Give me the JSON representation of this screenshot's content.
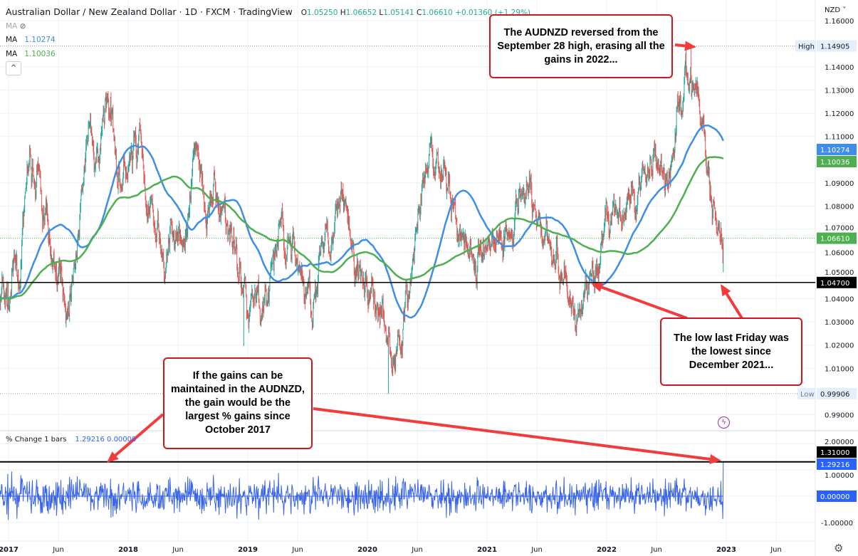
{
  "header": {
    "title": "Australian Dollar / New Zealand Dollar · 1D · FXCM · TradingView",
    "open_label": "O",
    "open": "1.05250",
    "high_label": "H",
    "high": "1.06652",
    "low_label": "L",
    "low": "1.05141",
    "close_label": "C",
    "close": "1.06610",
    "change": "+0.01360 (+1.29%)",
    "currency": "NZD"
  },
  "indicators": [
    {
      "label": "MA",
      "value": "",
      "hidden": true,
      "icon": "eye-off-icon"
    },
    {
      "label": "MA",
      "value": "1.10274",
      "color": "#3d8ee8"
    },
    {
      "label": "MA",
      "value": "1.10036",
      "color": "#4caf50"
    }
  ],
  "collapse_icon": "chevron-up-icon",
  "lower_pane": {
    "label": "% Change 1 bars",
    "value1": "1.29216",
    "value2": "0.00000"
  },
  "annotations": [
    {
      "text": "The AUDNZD reversed from the September 28 high, erasing all the gains in 2022..."
    },
    {
      "text": "If the gains can be maintained in the AUDNZD, the gain would be the largest % gains since October 2017"
    },
    {
      "text": "The low last Friday was the lowest since December 2021..."
    }
  ],
  "colors": {
    "up": "#26a69a",
    "down": "#ef5350",
    "ma_fast": "#3d8ee8",
    "ma_slow": "#4caf50",
    "pct": "#3a65e8",
    "annotation": "#d0151f",
    "arrow": "#f23c3c"
  },
  "chart_data": [
    {
      "type": "candlestick",
      "title": "Australian Dollar / New Zealand Dollar · 1D · FXCM · TradingView",
      "ylabel": "NZD",
      "ylim": [
        0.985,
        1.162
      ],
      "y_ticks": [
        "1.16000",
        "1.14000",
        "1.13000",
        "1.12000",
        "1.11000",
        "1.09000",
        "1.08000",
        "1.07000",
        "1.06000",
        "1.05000",
        "1.04000",
        "1.03000",
        "1.02000",
        "1.01000",
        "0.99000"
      ],
      "x_ticks": [
        "2017",
        "Jun",
        "2018",
        "Jun",
        "2019",
        "Jun",
        "2020",
        "Jun",
        "2021",
        "Jun",
        "2022",
        "Jun",
        "2023",
        "Jun"
      ],
      "grid": true,
      "monthly_closes": {
        "start": "2017-01",
        "values": [
          1.04,
          1.05,
          1.09,
          1.085,
          1.06,
          1.05,
          1.045,
          1.07,
          1.11,
          1.09,
          1.12,
          1.1,
          1.1,
          1.09,
          1.075,
          1.06,
          1.06,
          1.08,
          1.075,
          1.1,
          1.095,
          1.08,
          1.075,
          1.06,
          1.045,
          1.045,
          1.035,
          1.055,
          1.065,
          1.055,
          1.045,
          1.04,
          1.075,
          1.08,
          1.07,
          1.045,
          1.04,
          1.035,
          1.03,
          1.01,
          1.05,
          1.07,
          1.08,
          1.09,
          1.095,
          1.075,
          1.065,
          1.06,
          1.07,
          1.075,
          1.08,
          1.09,
          1.08,
          1.075,
          1.07,
          1.055,
          1.045,
          1.035,
          1.045,
          1.045,
          1.06,
          1.07,
          1.08,
          1.085,
          1.105,
          1.11,
          1.105,
          1.12,
          1.14,
          1.13,
          1.1,
          1.066
        ]
      },
      "last_bar": {
        "open": 1.0525,
        "high": 1.06652,
        "low": 1.05141,
        "close": 1.0661
      },
      "extremes": [
        {
          "label": "High",
          "value": "1.14905",
          "date": "2022-09-28"
        },
        {
          "label": "Low",
          "value": "0.99906",
          "date": "2020-03-19"
        },
        {
          "label": "",
          "value": 1.0195,
          "date": "2019-01-03"
        }
      ],
      "moving_averages": [
        {
          "value": "1.10274",
          "color": "#3d8ee8"
        },
        {
          "value": "1.10036",
          "color": "#4caf50"
        }
      ],
      "horizontal_lines": [
        {
          "value": "1.04700"
        }
      ],
      "price_labels": [
        {
          "value": "1.06610",
          "color": "#4caf50"
        }
      ]
    },
    {
      "type": "line",
      "title": "% Change 1 bars",
      "ylim": [
        -1.3,
        2.2
      ],
      "y_ticks": [
        "2.00000",
        "1.00000",
        "-1.00000"
      ],
      "last_value": 1.29216,
      "zero_label": "0.00000",
      "horizontal_lines": [
        {
          "value": "1.31000"
        }
      ],
      "grid": true
    }
  ]
}
